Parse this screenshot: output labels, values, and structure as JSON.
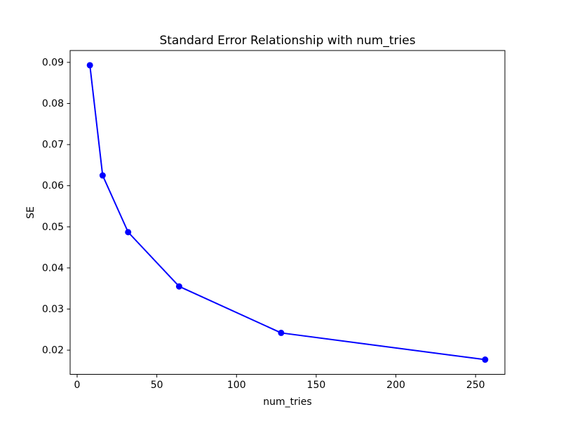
{
  "chart_data": {
    "type": "line",
    "title": "Standard Error Relationship with num_tries",
    "xlabel": "num_tries",
    "ylabel": "SE",
    "x": [
      8,
      16,
      32,
      64,
      128,
      256
    ],
    "y": [
      0.0893,
      0.0625,
      0.0487,
      0.0355,
      0.0242,
      0.0177
    ],
    "xticks": [
      0,
      50,
      100,
      150,
      200,
      250
    ],
    "xtick_labels": [
      "0",
      "50",
      "100",
      "150",
      "200",
      "250"
    ],
    "yticks": [
      0.02,
      0.03,
      0.04,
      0.05,
      0.06,
      0.07,
      0.08,
      0.09
    ],
    "ytick_labels": [
      "0.02",
      "0.03",
      "0.04",
      "0.05",
      "0.06",
      "0.07",
      "0.08",
      "0.09"
    ],
    "xlim": [
      -4.4,
      268.4
    ],
    "ylim": [
      0.01412,
      0.09288
    ],
    "grid": false,
    "legend": "none",
    "line_color": "#0000ff",
    "marker": "circle",
    "axes_color": "#000000",
    "background": "#ffffff"
  }
}
